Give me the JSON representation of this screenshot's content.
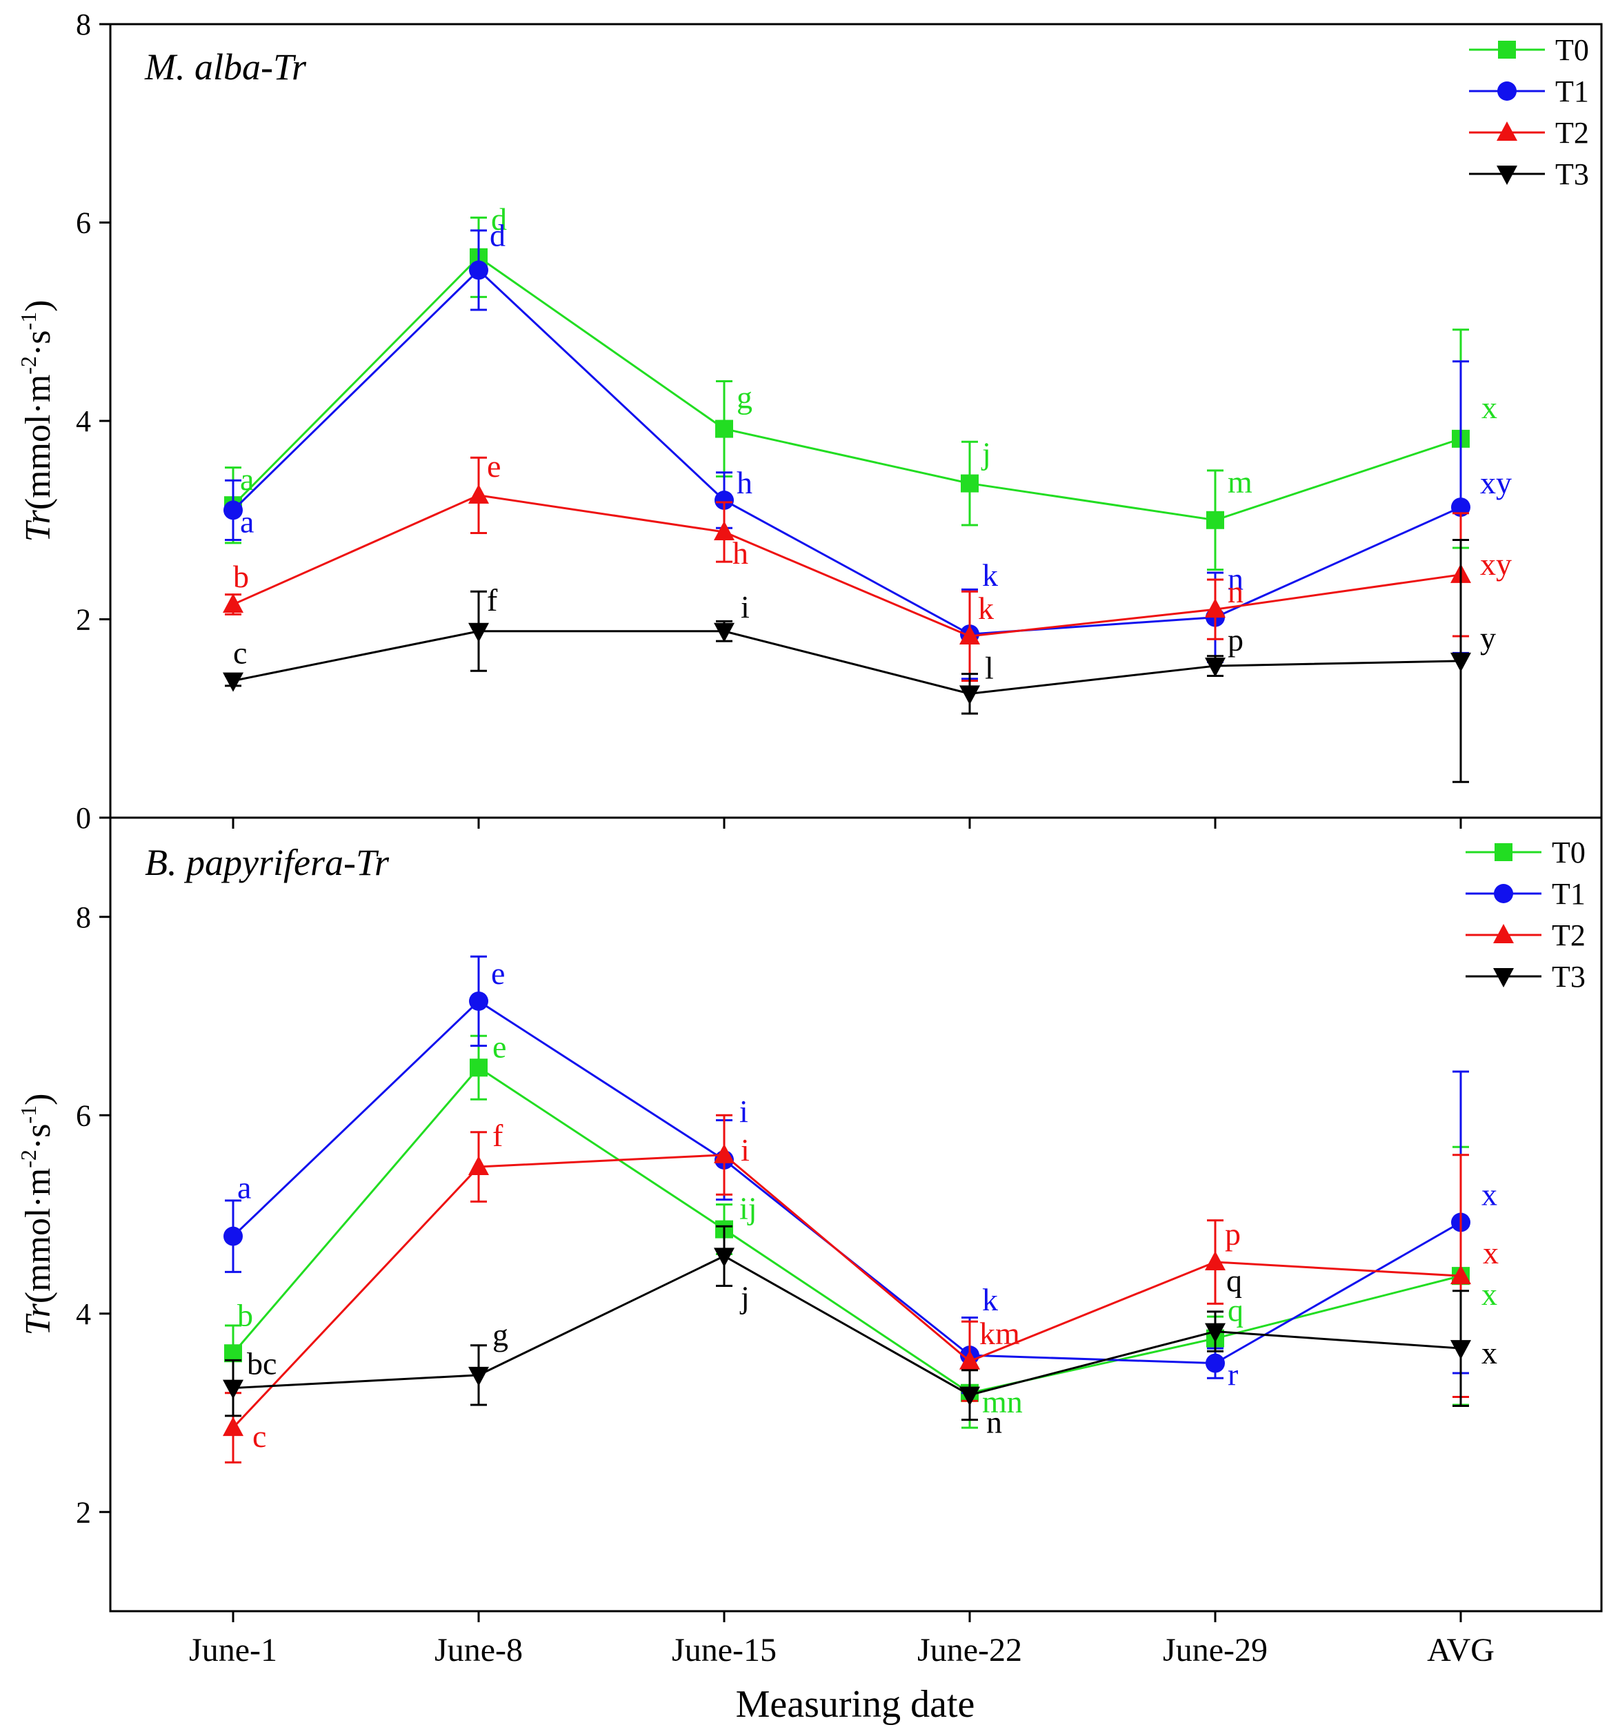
{
  "chart_data": {
    "type": "line",
    "x_axis_label": "Measuring date",
    "categories": [
      "June-1",
      "June-8",
      "June-15",
      "June-22",
      "June-29",
      "AVG"
    ],
    "series_styles": [
      {
        "name": "T0",
        "color": "#22dd22",
        "marker": "square"
      },
      {
        "name": "T1",
        "color": "#1111ee",
        "marker": "circle"
      },
      {
        "name": "T2",
        "color": "#ee1111",
        "marker": "triangle-up"
      },
      {
        "name": "T3",
        "color": "#000000",
        "marker": "triangle-down"
      }
    ],
    "panels": [
      {
        "title_species": "M. alba",
        "title_suffix": "-Tr",
        "ylabel_main": "Tr",
        "ylabel_unit": "(mmol·m",
        "ylabel_sup1": "-2",
        "ylabel_mid": "·s",
        "ylabel_sup2": "-1",
        "ylabel_end": ")",
        "ylim": [
          0,
          8
        ],
        "yticks": [
          0,
          2,
          4,
          6,
          8
        ],
        "legend": [
          "T0",
          "T1",
          "T2",
          "T3"
        ],
        "series": [
          {
            "name": "T0",
            "values": [
              3.15,
              5.65,
              3.92,
              3.37,
              3.0,
              3.82
            ],
            "errors": [
              0.38,
              0.4,
              0.48,
              0.42,
              0.5,
              1.1
            ],
            "letters": [
              "a",
              "d",
              "g",
              "j",
              "m",
              "x"
            ]
          },
          {
            "name": "T1",
            "values": [
              3.1,
              5.52,
              3.2,
              1.85,
              2.02,
              3.13
            ],
            "errors": [
              0.3,
              0.4,
              0.28,
              0.45,
              0.45,
              1.47
            ],
            "letters": [
              "a",
              "d",
              "h",
              "k",
              "n",
              "xy"
            ]
          },
          {
            "name": "T2",
            "values": [
              2.15,
              3.25,
              2.88,
              1.83,
              2.1,
              2.45
            ],
            "errors": [
              0.1,
              0.38,
              0.3,
              0.45,
              0.3,
              0.62
            ],
            "letters": [
              "b",
              "e",
              "h",
              "k",
              "n",
              "xy"
            ]
          },
          {
            "name": "T3",
            "values": [
              1.38,
              1.88,
              1.88,
              1.25,
              1.53,
              1.58
            ],
            "errors": [
              0.05,
              0.4,
              0.1,
              0.2,
              0.1,
              1.22
            ],
            "letters": [
              "c",
              "f",
              "i",
              "l",
              "p",
              "y"
            ]
          }
        ]
      },
      {
        "title_species": "B. papyrifera",
        "title_suffix": "-Tr",
        "ylabel_main": "Tr",
        "ylabel_unit": "(mmol·m",
        "ylabel_sup1": "-2",
        "ylabel_mid": "·s",
        "ylabel_sup2": "-1",
        "ylabel_end": ")",
        "ylim": [
          1,
          9
        ],
        "yticks": [
          2,
          4,
          6,
          8
        ],
        "legend": [
          "T0",
          "T1",
          "T2",
          "T3"
        ],
        "series": [
          {
            "name": "T0",
            "values": [
              3.6,
              6.48,
              4.85,
              3.2,
              3.75,
              4.38
            ],
            "errors": [
              0.28,
              0.32,
              0.25,
              0.35,
              0.22,
              1.3
            ],
            "letters": [
              "b",
              "e",
              "ij",
              "mn",
              "q",
              "x"
            ]
          },
          {
            "name": "T1",
            "values": [
              4.78,
              7.15,
              5.55,
              3.58,
              3.5,
              4.92
            ],
            "errors": [
              0.36,
              0.45,
              0.4,
              0.38,
              0.15,
              1.52
            ],
            "letters": [
              "a",
              "e",
              "i",
              "k",
              "r",
              "x"
            ]
          },
          {
            "name": "T2",
            "values": [
              2.85,
              5.48,
              5.6,
              3.52,
              4.52,
              4.38
            ],
            "errors": [
              0.35,
              0.35,
              0.4,
              0.4,
              0.42,
              1.22
            ],
            "letters": [
              "c",
              "f",
              "i",
              "km",
              "p",
              "x"
            ]
          },
          {
            "name": "T3",
            "values": [
              3.25,
              3.38,
              4.58,
              3.18,
              3.82,
              3.65
            ],
            "errors": [
              0.28,
              0.3,
              0.3,
              0.25,
              0.2,
              0.58
            ],
            "letters": [
              "bc",
              "g",
              "j",
              "n",
              "q",
              "x"
            ]
          }
        ]
      }
    ]
  }
}
